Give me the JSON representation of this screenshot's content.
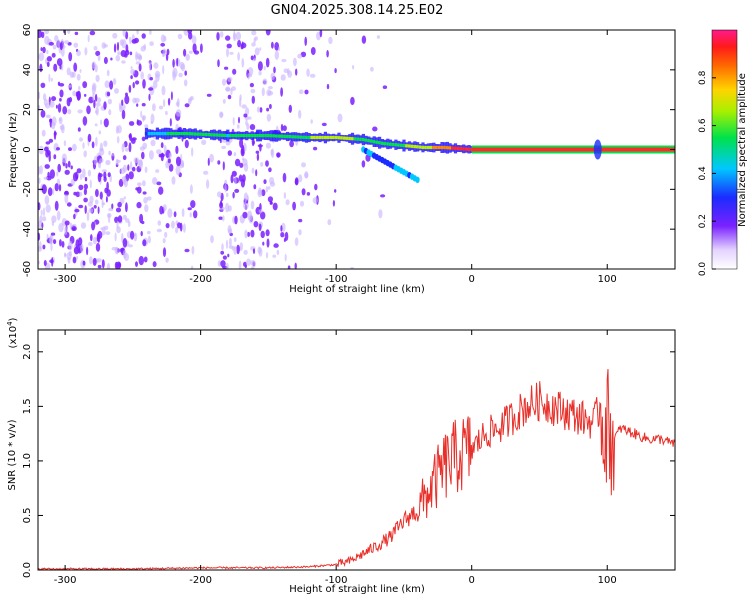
{
  "title": "GN04.2025.308.14.25.E02",
  "colors": {
    "snr_line": "#e8302a",
    "ridge": "#ff2a2a",
    "scatter": "#7a1fff",
    "scatter_light": "#c9b3ff"
  },
  "chart_data": [
    {
      "type": "heatmap",
      "name": "spectrogram",
      "xlabel": "Height of straight line (km)",
      "ylabel": "Frequency (Hz)",
      "xlim": [
        -320,
        150
      ],
      "ylim": [
        -60,
        60
      ],
      "x_ticks": [
        -300,
        -200,
        -100,
        0,
        100
      ],
      "y_ticks": [
        -60,
        -40,
        -20,
        0,
        20,
        40,
        60
      ],
      "colorbar": {
        "label": "Normalized spectral amplitude",
        "range": [
          0,
          1
        ],
        "ticks": [
          0.0,
          0.2,
          0.4,
          0.6,
          0.8
        ]
      },
      "ridge": {
        "description": "dominant frequency band vs height",
        "x": [
          -240,
          -210,
          -180,
          -150,
          -120,
          -100,
          -80,
          -65,
          -50,
          -35,
          -20,
          -10,
          0,
          50,
          100,
          150
        ],
        "y": [
          8,
          8,
          7,
          7,
          6,
          6,
          5,
          3,
          2,
          1,
          1,
          0.5,
          0,
          0,
          0,
          0
        ],
        "amplitude": [
          0.3,
          0.6,
          0.45,
          0.5,
          0.6,
          0.7,
          0.55,
          0.5,
          0.6,
          0.7,
          0.85,
          0.95,
          1.0,
          1.0,
          1.0,
          1.0
        ]
      }
    },
    {
      "type": "line",
      "name": "snr",
      "xlabel": "Height of straight line (km)",
      "ylabel": "SNR (10 * v/v)",
      "y_multiplier": "(x10^4)",
      "y_multiplier_base": "(x10",
      "y_multiplier_exp": "4",
      "y_multiplier_close": ")",
      "xlim": [
        -320,
        150
      ],
      "ylim": [
        0,
        2.2
      ],
      "x_ticks": [
        -300,
        -200,
        -100,
        0,
        100
      ],
      "y_ticks": [
        0.0,
        0.5,
        1.0,
        1.5,
        2.0
      ],
      "series": [
        {
          "name": "SNR",
          "x": [
            -320,
            -250,
            -200,
            -150,
            -120,
            -100,
            -90,
            -80,
            -70,
            -60,
            -50,
            -40,
            -30,
            -20,
            -10,
            0,
            10,
            20,
            30,
            40,
            50,
            60,
            70,
            80,
            90,
            95,
            100,
            105,
            110,
            120,
            130,
            140,
            150
          ],
          "y": [
            0.01,
            0.01,
            0.02,
            0.02,
            0.03,
            0.05,
            0.08,
            0.15,
            0.22,
            0.3,
            0.45,
            0.55,
            0.75,
            0.95,
            1.05,
            1.1,
            1.25,
            1.3,
            1.4,
            1.5,
            1.55,
            1.5,
            1.45,
            1.4,
            1.35,
            1.5,
            1.3,
            1.2,
            1.3,
            1.25,
            1.2,
            1.2,
            1.15
          ]
        }
      ]
    }
  ]
}
